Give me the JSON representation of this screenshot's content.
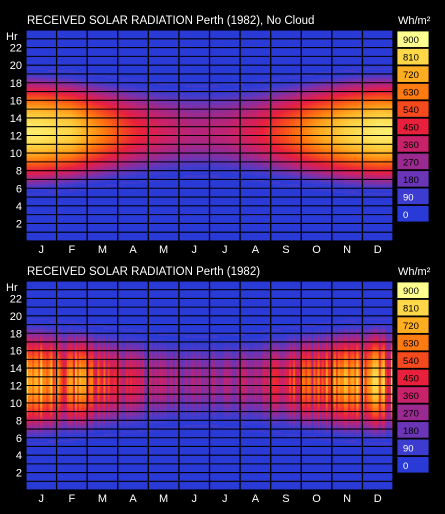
{
  "chart_data": [
    {
      "type": "heatmap",
      "title": "RECEIVED SOLAR RADIATION   Perth (1982), No Cloud",
      "ylabel": "Hr",
      "y_ticks": [
        "2",
        "4",
        "6",
        "8",
        "10",
        "12",
        "14",
        "16",
        "18",
        "20",
        "22"
      ],
      "x_ticks": [
        "J",
        "F",
        "M",
        "A",
        "M",
        "J",
        "J",
        "A",
        "S",
        "O",
        "N",
        "D"
      ],
      "ylim": [
        0,
        24
      ],
      "xlim": [
        0,
        12
      ],
      "legend_unit": "Wh/m²",
      "legend_levels": [
        "900",
        "810",
        "720",
        "630",
        "540",
        "450",
        "360",
        "270",
        "180",
        "90",
        "0"
      ],
      "peak_by_month": [
        850,
        800,
        640,
        480,
        380,
        320,
        340,
        420,
        560,
        700,
        800,
        860
      ],
      "day_length_by_month": [
        13.9,
        13.2,
        12.3,
        11.4,
        10.6,
        10.1,
        10.3,
        11.0,
        11.9,
        12.8,
        13.6,
        14.1
      ],
      "solar_noon_hour": 12.5,
      "cloud": false
    },
    {
      "type": "heatmap",
      "title": "RECEIVED SOLAR RADIATION   Perth (1982)",
      "ylabel": "Hr",
      "y_ticks": [
        "2",
        "4",
        "6",
        "8",
        "10",
        "12",
        "14",
        "16",
        "18",
        "20",
        "22"
      ],
      "x_ticks": [
        "J",
        "F",
        "M",
        "A",
        "M",
        "J",
        "J",
        "A",
        "S",
        "O",
        "N",
        "D"
      ],
      "ylim": [
        0,
        24
      ],
      "xlim": [
        0,
        12
      ],
      "legend_unit": "Wh/m²",
      "legend_levels": [
        "900",
        "810",
        "720",
        "630",
        "540",
        "450",
        "360",
        "270",
        "180",
        "90",
        "0"
      ],
      "peak_by_month": [
        850,
        800,
        640,
        480,
        380,
        320,
        340,
        420,
        560,
        700,
        800,
        860
      ],
      "day_length_by_month": [
        13.9,
        13.2,
        12.3,
        11.4,
        10.6,
        10.1,
        10.3,
        11.0,
        11.9,
        12.8,
        13.6,
        14.1
      ],
      "solar_noon_hour": 12.5,
      "cloud": true
    }
  ],
  "colors": {
    "background": "#000000",
    "low": "#2a3ad6",
    "scale": [
      "#2a3ad6",
      "#3c3cd0",
      "#6a35b6",
      "#9a2a90",
      "#c8226a",
      "#e8203c",
      "#f54a1e",
      "#ff7a10",
      "#ffae22",
      "#ffd84a",
      "#ffff90"
    ]
  }
}
